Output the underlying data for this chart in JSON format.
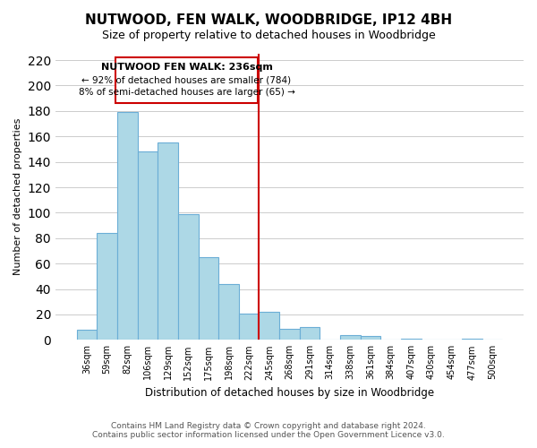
{
  "title": "NUTWOOD, FEN WALK, WOODBRIDGE, IP12 4BH",
  "subtitle": "Size of property relative to detached houses in Woodbridge",
  "xlabel": "Distribution of detached houses by size in Woodbridge",
  "ylabel": "Number of detached properties",
  "bar_color": "#add8e6",
  "bar_edge_color": "#6baed6",
  "categories": [
    "36sqm",
    "59sqm",
    "82sqm",
    "106sqm",
    "129sqm",
    "152sqm",
    "175sqm",
    "198sqm",
    "222sqm",
    "245sqm",
    "268sqm",
    "291sqm",
    "314sqm",
    "338sqm",
    "361sqm",
    "384sqm",
    "407sqm",
    "430sqm",
    "454sqm",
    "477sqm",
    "500sqm"
  ],
  "values": [
    8,
    84,
    179,
    148,
    155,
    99,
    65,
    44,
    21,
    22,
    9,
    10,
    0,
    4,
    3,
    0,
    1,
    0,
    0,
    1,
    0
  ],
  "vline_x": 8.5,
  "marker_label": "NUTWOOD FEN WALK: 236sqm",
  "pct_smaller": "92% of detached houses are smaller (784)",
  "pct_larger": "8% of semi-detached houses are larger (65)",
  "ylim": [
    0,
    225
  ],
  "yticks": [
    0,
    20,
    40,
    60,
    80,
    100,
    120,
    140,
    160,
    180,
    200,
    220
  ],
  "footer1": "Contains HM Land Registry data © Crown copyright and database right 2024.",
  "footer2": "Contains public sector information licensed under the Open Government Licence v3.0.",
  "background_color": "#ffffff",
  "grid_color": "#cccccc",
  "vline_color": "#cc0000",
  "box_edge_color": "#cc0000",
  "figsize": [
    6.0,
    5.0
  ],
  "dpi": 100
}
